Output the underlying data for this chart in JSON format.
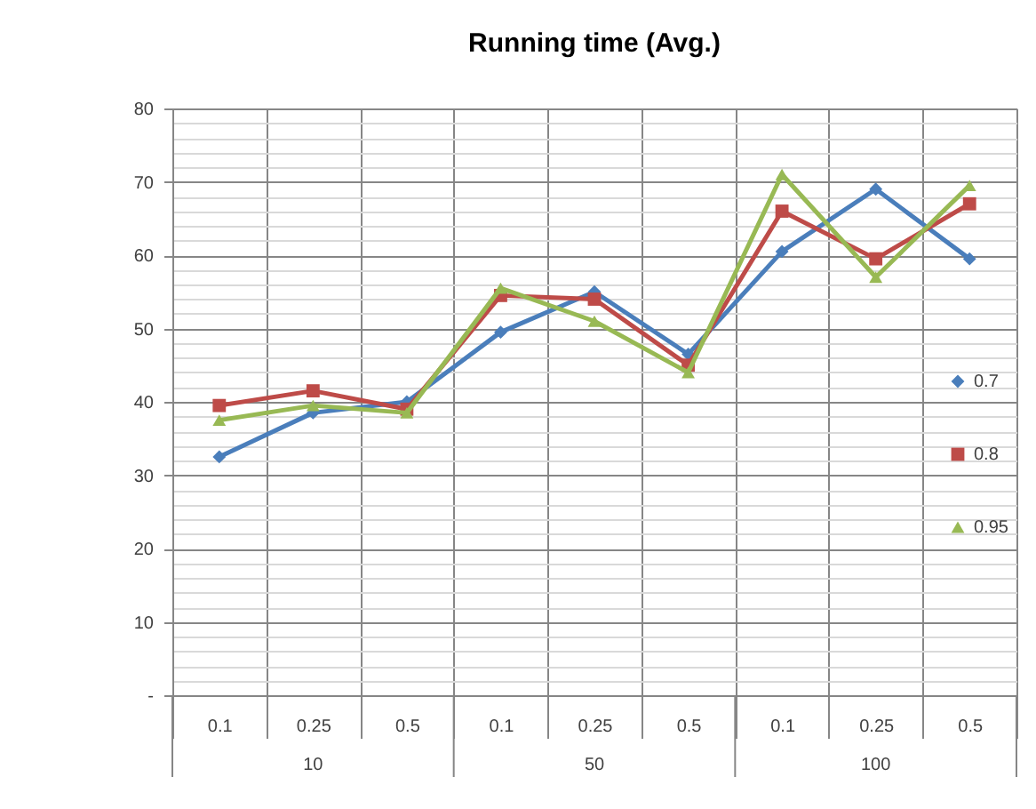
{
  "chart_data": {
    "type": "line",
    "title": "Running time (Avg.)",
    "categories": [
      "0.1",
      "0.25",
      "0.5",
      "0.1",
      "0.25",
      "0.5",
      "0.1",
      "0.25",
      "0.5"
    ],
    "annotations": [
      "10",
      "50",
      "100"
    ],
    "series": [
      {
        "name": "0.7",
        "color": "#4a7ebb",
        "marker": "diamond",
        "values": [
          32.5,
          38.5,
          40,
          49.5,
          55,
          46.5,
          60.5,
          69,
          59.5
        ]
      },
      {
        "name": "0.8",
        "color": "#be4b48",
        "marker": "square",
        "values": [
          39.5,
          41.5,
          39,
          54.5,
          54,
          45,
          66,
          59.5,
          67
        ]
      },
      {
        "name": "0.95",
        "color": "#98b954",
        "marker": "triangle",
        "values": [
          37.5,
          39.5,
          38.5,
          55.5,
          51,
          44,
          71,
          57,
          69.5
        ]
      }
    ],
    "ylim": [
      0,
      80
    ],
    "yticks": [
      {
        "value": 0,
        "label": "-"
      },
      {
        "value": 2,
        "label": null
      },
      {
        "value": 4,
        "label": null
      },
      {
        "value": 6,
        "label": null
      },
      {
        "value": 8,
        "label": null
      },
      10,
      {
        "value": 12,
        "label": null
      },
      {
        "value": 14,
        "label": null
      },
      {
        "value": 16,
        "label": null
      },
      {
        "value": 18,
        "label": null
      },
      20,
      {
        "value": 22,
        "label": null
      },
      {
        "value": 24,
        "label": null
      },
      {
        "value": 26,
        "label": null
      },
      {
        "value": 28,
        "label": null
      },
      30,
      {
        "value": 32,
        "label": null
      },
      {
        "value": 34,
        "label": null
      },
      {
        "value": 36,
        "label": null
      },
      {
        "value": 38,
        "label": null
      },
      40,
      {
        "value": 42,
        "label": null
      },
      {
        "value": 44,
        "label": null
      },
      {
        "value": 46,
        "label": null
      },
      {
        "value": 48,
        "label": null
      },
      50,
      {
        "value": 52,
        "label": null
      },
      {
        "value": 54,
        "label": null
      },
      {
        "value": 56,
        "label": null
      },
      {
        "value": 58,
        "label": null
      },
      60,
      {
        "value": 62,
        "label": null
      },
      {
        "value": 64,
        "label": null
      },
      {
        "value": 66,
        "label": null
      },
      {
        "value": 68,
        "label": null
      },
      70,
      {
        "value": 72,
        "label": null
      },
      {
        "value": 74,
        "label": null
      },
      {
        "value": 76,
        "label": null
      },
      {
        "value": 78,
        "label": null
      },
      80
    ],
    "grid": true,
    "legend": "right"
  }
}
